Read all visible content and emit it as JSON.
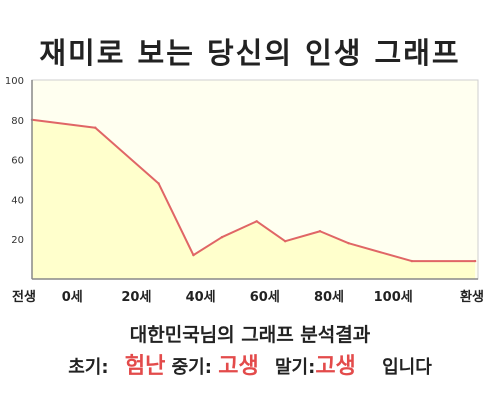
{
  "title": "재미로 보는 당신의 인생 그래프",
  "chart_data": {
    "type": "area",
    "title": "재미로 보는 당신의 인생 그래프",
    "xlabel": "",
    "ylabel": "",
    "ylim": [
      0,
      100
    ],
    "yticks": [
      20,
      40,
      60,
      80,
      100
    ],
    "xtick_labels": [
      "전생",
      "0세",
      "20세",
      "40세",
      "60세",
      "80세",
      "100세",
      "환생"
    ],
    "grid": false,
    "series": [
      {
        "x_index": [
          0,
          1,
          2,
          2.55,
          3,
          3.55,
          4,
          4.55,
          5,
          6,
          7
        ],
        "values": [
          80,
          76,
          48,
          12,
          21,
          29,
          19,
          24,
          18,
          9,
          9
        ]
      }
    ],
    "colors": {
      "line": "#e06666",
      "fill": "#ffffcc",
      "plot_bg": "#fffff0",
      "axis": "#888888"
    }
  },
  "result": {
    "line1": "대한민국님의 그래프 분석결과",
    "early_label": "초기:",
    "early_value": "험난",
    "mid_label": "중기:",
    "mid_value": "고생",
    "late_label": "말기:",
    "late_value": "고생",
    "suffix": "입니다"
  }
}
